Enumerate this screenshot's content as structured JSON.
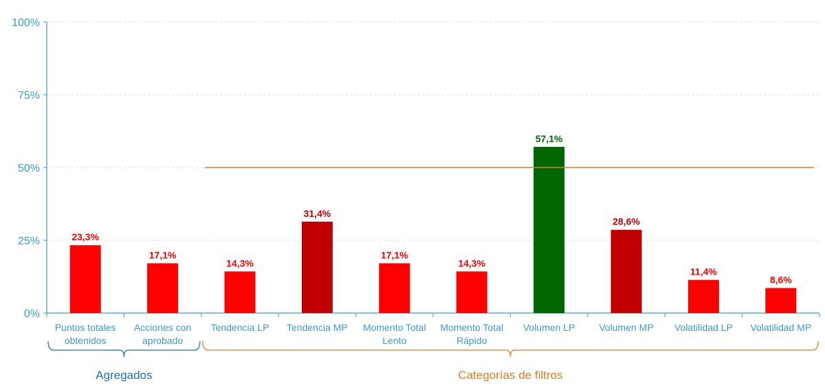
{
  "chart_data": {
    "type": "bar",
    "categories": [
      [
        "Puntos totales",
        "obtenidos"
      ],
      [
        "Acciones con",
        "aprobado"
      ],
      [
        "Tendencia LP"
      ],
      [
        "Tendencia MP"
      ],
      [
        "Momento Total",
        "Lento"
      ],
      [
        "Momento Total",
        "Rápido"
      ],
      [
        "Volumen LP"
      ],
      [
        "Volumen MP"
      ],
      [
        "Volatilidad LP"
      ],
      [
        "Volatilidad MP"
      ]
    ],
    "values": [
      23.3,
      17.1,
      14.3,
      31.4,
      17.1,
      14.3,
      57.1,
      28.6,
      11.4,
      8.6
    ],
    "data_labels": [
      "23,3%",
      "17,1%",
      "14,3%",
      "31,4%",
      "17,1%",
      "14,3%",
      "57,1%",
      "28,6%",
      "11,4%",
      "8,6%"
    ],
    "bar_colors": [
      "#ff0000",
      "#ff0000",
      "#ff0000",
      "#c00000",
      "#ff0000",
      "#ff0000",
      "#006600",
      "#c00000",
      "#ff0000",
      "#ff0000"
    ],
    "label_colors": [
      "#ff0000",
      "#ff0000",
      "#ff0000",
      "#c00000",
      "#ff0000",
      "#ff0000",
      "#006600",
      "#c00000",
      "#ff0000",
      "#ff0000"
    ],
    "ylim": [
      0,
      100
    ],
    "yticks": [
      0,
      25,
      50,
      75,
      100
    ],
    "ytick_labels": [
      "0%",
      "25%",
      "50%",
      "75%",
      "100%"
    ],
    "reference_line": {
      "value": 50,
      "from_index": 2,
      "to_index": 9,
      "color": "#e07b20"
    },
    "groups": [
      {
        "label": "Agregados",
        "from_index": 0,
        "to_index": 1,
        "color": "#1f6fbf"
      },
      {
        "label": "Categorías de filtros",
        "from_index": 2,
        "to_index": 9,
        "color": "#e07b20"
      }
    ],
    "grid": true,
    "axis_color": "#3a9ac9",
    "grid_color": "#e0e0e0"
  }
}
